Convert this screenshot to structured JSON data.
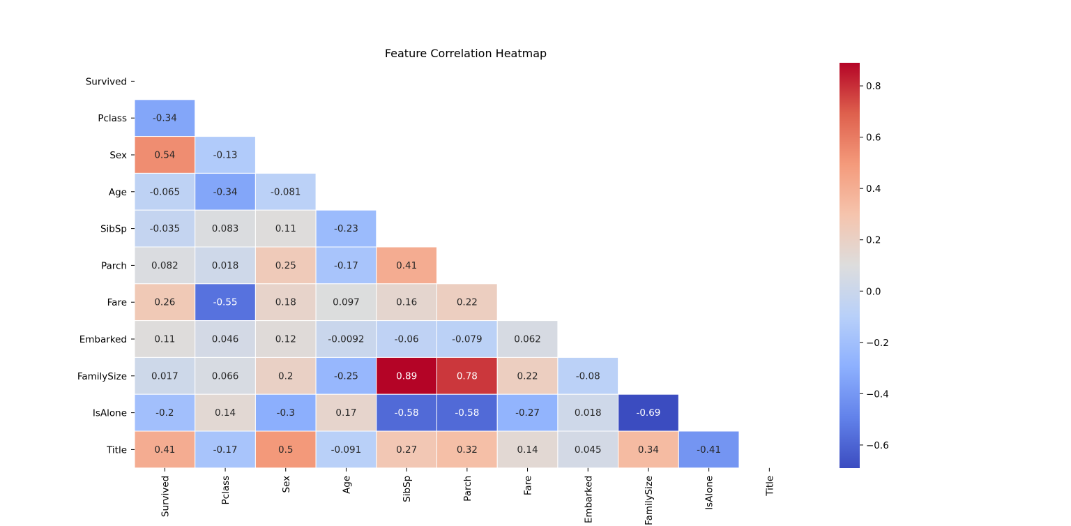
{
  "chart_data": {
    "type": "heatmap",
    "title": "Feature Correlation Heatmap",
    "labels": [
      "Survived",
      "Pclass",
      "Sex",
      "Age",
      "SibSp",
      "Parch",
      "Fare",
      "Embarked",
      "FamilySize",
      "IsAlone",
      "Title"
    ],
    "mask": "upper-triangle-including-diagonal",
    "rows": [
      [],
      [
        "-0.34"
      ],
      [
        "0.54",
        "-0.13"
      ],
      [
        "-0.065",
        "-0.34",
        "-0.081"
      ],
      [
        "-0.035",
        "0.083",
        "0.11",
        "-0.23"
      ],
      [
        "0.082",
        "0.018",
        "0.25",
        "-0.17",
        "0.41"
      ],
      [
        "0.26",
        "-0.55",
        "0.18",
        "0.097",
        "0.16",
        "0.22"
      ],
      [
        "0.11",
        "0.046",
        "0.12",
        "-0.0092",
        "-0.06",
        "-0.079",
        "0.062"
      ],
      [
        "0.017",
        "0.066",
        "0.2",
        "-0.25",
        "0.89",
        "0.78",
        "0.22",
        "-0.08"
      ],
      [
        "-0.2",
        "0.14",
        "-0.3",
        "0.17",
        "-0.58",
        "-0.58",
        "-0.27",
        "0.018",
        "-0.69"
      ],
      [
        "0.41",
        "-0.17",
        "0.5",
        "-0.091",
        "0.27",
        "0.32",
        "0.14",
        "0.045",
        "0.34",
        "-0.41"
      ]
    ],
    "colormap": "coolwarm",
    "colorbar": {
      "vmin": -0.69,
      "vmax": 0.89,
      "ticks": [
        "0.8",
        "0.6",
        "0.4",
        "0.2",
        "0.0",
        "−0.2",
        "−0.4",
        "−0.6"
      ],
      "tick_values": [
        0.8,
        0.6,
        0.4,
        0.2,
        0.0,
        -0.2,
        -0.4,
        -0.6
      ]
    },
    "grid_lines": "white",
    "legend": "colorbar-right"
  }
}
